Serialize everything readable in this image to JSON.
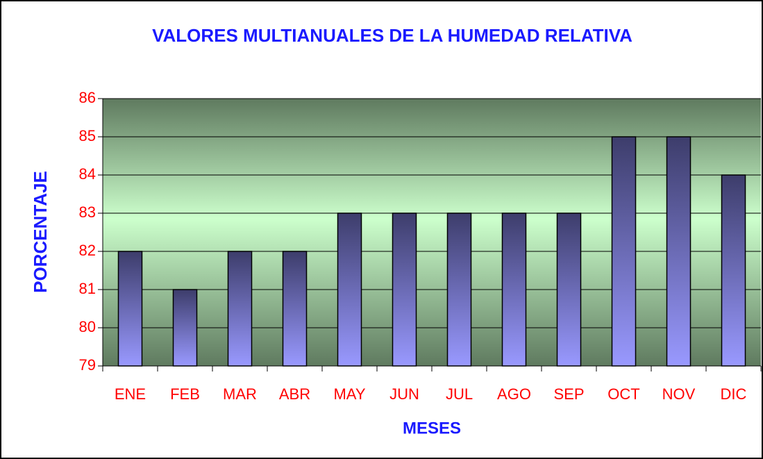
{
  "chart_data": {
    "type": "bar",
    "title": "VALORES MULTIANUALES DE LA HUMEDAD RELATIVA",
    "x_label": "MESES",
    "y_label": "PORCENTAJE",
    "categories": [
      "ENE",
      "FEB",
      "MAR",
      "ABR",
      "MAY",
      "JUN",
      "JUL",
      "AGO",
      "SEP",
      "OCT",
      "NOV",
      "DIC"
    ],
    "values": [
      82,
      81,
      82,
      82,
      83,
      83,
      83,
      83,
      83,
      85,
      85,
      84
    ],
    "color": "#9999ff",
    "ylim": [
      79,
      86
    ],
    "yticks": [
      79,
      80,
      81,
      82,
      83,
      84,
      85,
      86
    ],
    "grid": true
  }
}
